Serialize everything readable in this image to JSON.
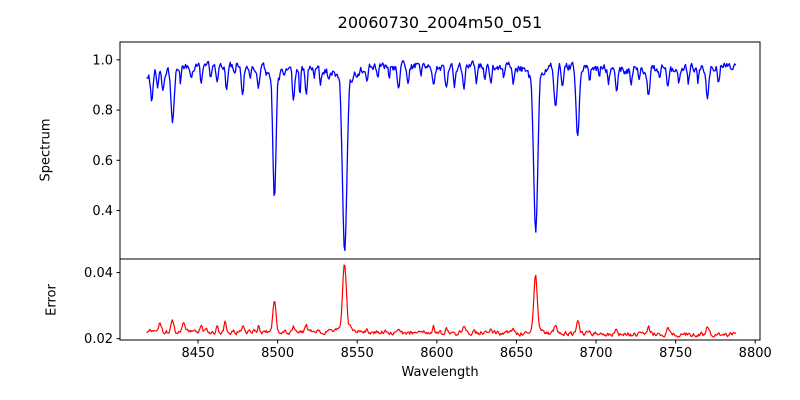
{
  "chart_data": {
    "type": "line",
    "title": "20060730_2004m50_051",
    "xlabel": "Wavelength",
    "background": "#ffffff",
    "axis_color": "#000000",
    "xlim": [
      8401,
      8803
    ],
    "xticks": [
      8450,
      8500,
      8550,
      8600,
      8650,
      8700,
      8750,
      8800
    ],
    "xtick_labels": [
      "8450",
      "8500",
      "8550",
      "8600",
      "8650",
      "8700",
      "8750",
      "8800"
    ],
    "x_start": 8418,
    "x_end": 8788,
    "sample_step": 0.55,
    "panels": [
      {
        "name": "spectrum",
        "ylabel": "Spectrum",
        "color": "#0000ff",
        "ylim": [
          0.207,
          1.071
        ],
        "yticks": [
          0.4,
          0.6,
          0.8,
          1.0
        ],
        "ytick_labels": [
          "0.4",
          "0.6",
          "0.8",
          "1.0"
        ],
        "flux_max_clip": 1.032,
        "noise_step": 0.03,
        "noise_persistence": 0.5,
        "continuum": [
          [
            8418,
            0.943
          ],
          [
            8428,
            0.952
          ],
          [
            8440,
            0.965
          ],
          [
            8455,
            0.972
          ],
          [
            8470,
            0.975
          ],
          [
            8490,
            0.978
          ],
          [
            8508,
            0.968
          ],
          [
            8525,
            0.968
          ],
          [
            8538,
            0.965
          ],
          [
            8555,
            0.972
          ],
          [
            8580,
            0.975
          ],
          [
            8610,
            0.975
          ],
          [
            8640,
            0.972
          ],
          [
            8665,
            0.972
          ],
          [
            8695,
            0.972
          ],
          [
            8715,
            0.962
          ],
          [
            8735,
            0.962
          ],
          [
            8755,
            0.966
          ],
          [
            8775,
            0.972
          ],
          [
            8788,
            0.982
          ]
        ],
        "continuum_reference": 0.975,
        "absorption_lines": [
          [
            8421,
            0.875,
            0.8
          ],
          [
            8424.5,
            0.92,
            0.5
          ],
          [
            8428,
            0.905,
            0.6
          ],
          [
            8434,
            0.77,
            0.9
          ],
          [
            8439,
            0.92,
            0.5
          ],
          [
            8446,
            0.93,
            0.5
          ],
          [
            8452,
            0.915,
            0.6
          ],
          [
            8458,
            0.935,
            0.5
          ],
          [
            8462,
            0.9,
            0.7
          ],
          [
            8468,
            0.885,
            0.7
          ],
          [
            8473,
            0.93,
            0.5
          ],
          [
            8478,
            0.86,
            0.8
          ],
          [
            8483,
            0.93,
            0.5
          ],
          [
            8488,
            0.87,
            0.7
          ],
          [
            8493,
            0.925,
            0.5
          ],
          [
            8498,
            0.45,
            1.0
          ],
          [
            8498,
            0.91,
            3.0
          ],
          [
            8504,
            0.93,
            0.5
          ],
          [
            8510,
            0.85,
            0.8
          ],
          [
            8514,
            0.87,
            0.5
          ],
          [
            8518,
            0.85,
            0.7
          ],
          [
            8523,
            0.93,
            0.5
          ],
          [
            8527,
            0.915,
            0.6
          ],
          [
            8532,
            0.93,
            0.5
          ],
          [
            8542.1,
            0.245,
            1.4
          ],
          [
            8542.1,
            0.9,
            4.5
          ],
          [
            8551,
            0.93,
            0.5
          ],
          [
            8556,
            0.92,
            0.6
          ],
          [
            8563,
            0.915,
            0.6
          ],
          [
            8570,
            0.93,
            0.5
          ],
          [
            8576,
            0.885,
            0.7
          ],
          [
            8582,
            0.91,
            0.6
          ],
          [
            8590,
            0.93,
            0.5
          ],
          [
            8598,
            0.91,
            0.6
          ],
          [
            8606,
            0.88,
            0.8
          ],
          [
            8611,
            0.9,
            0.6
          ],
          [
            8617,
            0.89,
            0.6
          ],
          [
            8625,
            0.915,
            0.6
          ],
          [
            8630,
            0.93,
            0.5
          ],
          [
            8634,
            0.91,
            0.6
          ],
          [
            8642,
            0.93,
            0.5
          ],
          [
            8648,
            0.9,
            0.7
          ],
          [
            8662.1,
            0.315,
            1.3
          ],
          [
            8661.5,
            0.91,
            3.8
          ],
          [
            8674.5,
            0.81,
            0.9
          ],
          [
            8679,
            0.895,
            0.6
          ],
          [
            8688.5,
            0.7,
            1.0
          ],
          [
            8696,
            0.91,
            0.6
          ],
          [
            8702,
            0.93,
            0.5
          ],
          [
            8708,
            0.93,
            0.5
          ],
          [
            8713,
            0.89,
            0.7
          ],
          [
            8722,
            0.9,
            0.6
          ],
          [
            8727,
            0.92,
            0.5
          ],
          [
            8733,
            0.875,
            0.8
          ],
          [
            8740,
            0.93,
            0.5
          ],
          [
            8745,
            0.89,
            0.6
          ],
          [
            8752,
            0.93,
            0.5
          ],
          [
            8758,
            0.91,
            0.6
          ],
          [
            8764,
            0.92,
            0.5
          ],
          [
            8770,
            0.835,
            0.9
          ],
          [
            8777,
            0.92,
            0.6
          ]
        ]
      },
      {
        "name": "error",
        "ylabel": "Error",
        "color": "#ff0000",
        "ylim": [
          0.0196,
          0.0441
        ],
        "yticks": [
          0.02,
          0.04
        ],
        "ytick_labels": [
          "0.02",
          "0.04"
        ],
        "noise_step": 0.0012,
        "noise_persistence": 0.5,
        "baseline": [
          [
            8418,
            0.0223
          ],
          [
            8460,
            0.0221
          ],
          [
            8500,
            0.022
          ],
          [
            8560,
            0.0219
          ],
          [
            8620,
            0.0218
          ],
          [
            8680,
            0.0216
          ],
          [
            8730,
            0.0214
          ],
          [
            8788,
            0.0213
          ]
        ],
        "baseline_reference": 0.022,
        "peaks": [
          [
            8426,
            0.0243,
            0.8
          ],
          [
            8434,
            0.0252,
            0.8
          ],
          [
            8441,
            0.0247,
            0.7
          ],
          [
            8452,
            0.0235,
            0.6
          ],
          [
            8462,
            0.0236,
            0.6
          ],
          [
            8467,
            0.0247,
            0.7
          ],
          [
            8478,
            0.024,
            0.7
          ],
          [
            8488,
            0.0239,
            0.6
          ],
          [
            8498,
            0.031,
            1.0
          ],
          [
            8510,
            0.0241,
            0.7
          ],
          [
            8518,
            0.0243,
            0.7
          ],
          [
            8542,
            0.043,
            1.2
          ],
          [
            8542,
            0.0256,
            3.2
          ],
          [
            8556,
            0.0238,
            0.6
          ],
          [
            8576,
            0.0237,
            0.6
          ],
          [
            8598,
            0.0236,
            0.5
          ],
          [
            8606,
            0.0239,
            0.7
          ],
          [
            8617,
            0.0241,
            0.7
          ],
          [
            8634,
            0.0236,
            0.5
          ],
          [
            8648,
            0.0237,
            0.6
          ],
          [
            8662,
            0.0398,
            1.1
          ],
          [
            8662,
            0.0247,
            2.4
          ],
          [
            8674.5,
            0.0246,
            0.7
          ],
          [
            8688.5,
            0.0263,
            0.8
          ],
          [
            8713,
            0.0237,
            0.6
          ],
          [
            8733,
            0.0239,
            0.6
          ],
          [
            8745,
            0.0236,
            0.5
          ],
          [
            8770,
            0.0243,
            0.7
          ]
        ]
      }
    ]
  }
}
